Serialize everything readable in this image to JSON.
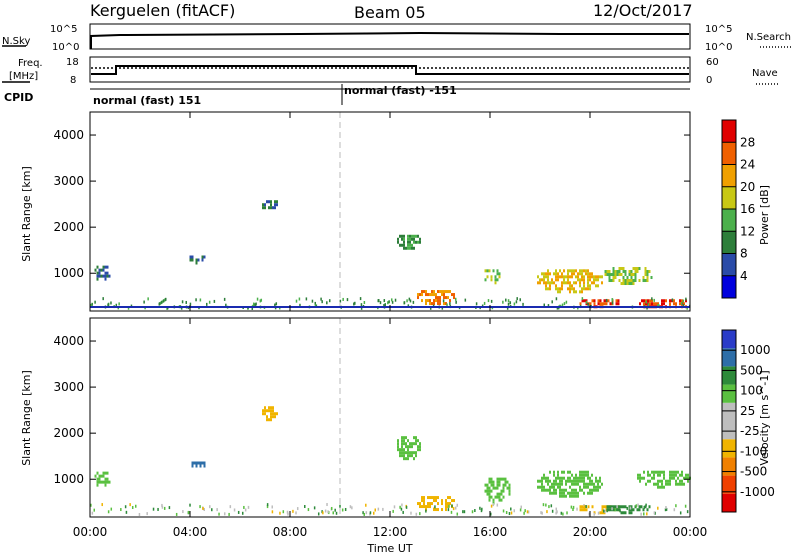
{
  "header": {
    "station": "Kerguelen (fitACF)",
    "beam": "Beam 05",
    "date": "12/Oct/2017"
  },
  "noise_panel": {
    "left_label": "N.Sky",
    "left_ticks": [
      "10^5",
      "10^0"
    ],
    "right_label": "N.Search",
    "right_ticks": [
      "10^5",
      "10^0"
    ]
  },
  "freq_panel": {
    "left_label_1": "Freq.",
    "left_label_2": "[MHz]",
    "left_ticks": [
      "18",
      "8"
    ],
    "right_label": "Nave",
    "right_ticks": [
      "60",
      "0"
    ]
  },
  "cpid_panel": {
    "label": "CPID",
    "mode_1": "normal (fast) 151",
    "mode_2": "normal (fast) -151"
  },
  "colors": {
    "power_scale": [
      "#0000dd",
      "#2a4ba8",
      "#2d7e3a",
      "#4bb04b",
      "#c8c814",
      "#f0a000",
      "#f06000",
      "#e00000"
    ],
    "velocity_scale": [
      "#2a3cc8",
      "#2d6ea8",
      "#2d8a3a",
      "#5ac040",
      "#bebebe",
      "#bebebe",
      "#f0b400",
      "#f08000",
      "#f04000",
      "#e00000"
    ]
  },
  "chart_data": [
    {
      "type": "heatmap",
      "name": "power",
      "ylabel": "Slant Range [km]",
      "xlim": [
        "00:00",
        "00:00"
      ],
      "ylim": [
        180,
        4500
      ],
      "yticks": [
        "1000",
        "2000",
        "3000",
        "4000"
      ],
      "colorbar_label": "Power [dB]",
      "colorbar_ticks": [
        "4",
        "8",
        "12",
        "16",
        "20",
        "24",
        "28"
      ],
      "marker_line_time": "10:00",
      "echo_regions": [
        {
          "t": [
            0.1,
            0.8
          ],
          "range": [
            870,
            1230
          ],
          "level": 8
        },
        {
          "t": [
            6.8,
            7.5
          ],
          "range": [
            2400,
            2650
          ],
          "level": 8
        },
        {
          "t": [
            3.9,
            4.6
          ],
          "range": [
            1250,
            1450
          ],
          "level": 8
        },
        {
          "t": [
            12.2,
            13.2
          ],
          "range": [
            1550,
            1900
          ],
          "level": 12
        },
        {
          "t": [
            13.0,
            14.6
          ],
          "range": [
            350,
            700
          ],
          "level": 24
        },
        {
          "t": [
            15.7,
            16.4
          ],
          "range": [
            800,
            1150
          ],
          "level": 16
        },
        {
          "t": [
            17.8,
            20.5
          ],
          "range": [
            600,
            1150
          ],
          "level": 20
        },
        {
          "t": [
            19.5,
            21.2
          ],
          "range": [
            300,
            500
          ],
          "level": 28
        },
        {
          "t": [
            20.5,
            22.5
          ],
          "range": [
            800,
            1200
          ],
          "level": 16
        },
        {
          "t": [
            21.8,
            24.0
          ],
          "range": [
            250,
            500
          ],
          "level": 28
        }
      ]
    },
    {
      "type": "heatmap",
      "name": "velocity",
      "xlabel": "Time UT",
      "ylabel": "Slant Range [km]",
      "xticks": [
        "00:00",
        "04:00",
        "08:00",
        "12:00",
        "16:00",
        "20:00",
        "00:00"
      ],
      "yticks": [
        "1000",
        "2000",
        "3000",
        "4000"
      ],
      "ylim": [
        180,
        4500
      ],
      "colorbar_label": "Velocity [m s^-1]",
      "colorbar_ticks": [
        "1000",
        "500",
        "100",
        "25",
        "-25",
        "-100",
        "-500",
        "-1000"
      ],
      "marker_line_time": "10:00",
      "echo_regions": [
        {
          "t": [
            0.1,
            0.8
          ],
          "range": [
            870,
            1230
          ],
          "level": 25
        },
        {
          "t": [
            6.8,
            7.5
          ],
          "range": [
            2300,
            2650
          ],
          "level": -100
        },
        {
          "t": [
            3.9,
            4.6
          ],
          "range": [
            1250,
            1450
          ],
          "level": 500
        },
        {
          "t": [
            12.2,
            13.2
          ],
          "range": [
            1450,
            2000
          ],
          "level": 25
        },
        {
          "t": [
            13.0,
            14.6
          ],
          "range": [
            350,
            700
          ],
          "level": -100
        },
        {
          "t": [
            15.7,
            16.8
          ],
          "range": [
            500,
            1100
          ],
          "level": 25
        },
        {
          "t": [
            17.8,
            20.5
          ],
          "range": [
            650,
            1250
          ],
          "level": 25
        },
        {
          "t": [
            19.5,
            21.2
          ],
          "range": [
            300,
            500
          ],
          "level": -100
        },
        {
          "t": [
            20.5,
            22.5
          ],
          "range": [
            300,
            500
          ],
          "level": 100
        },
        {
          "t": [
            21.8,
            24.0
          ],
          "range": [
            850,
            1250
          ],
          "level": 25
        }
      ]
    }
  ]
}
